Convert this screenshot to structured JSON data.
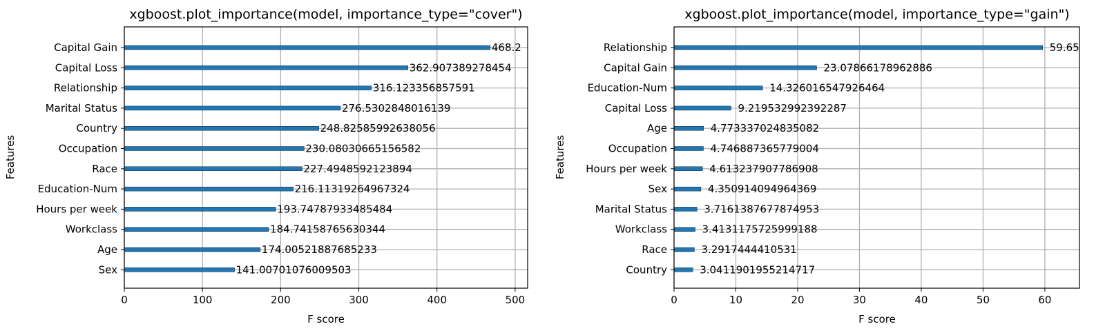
{
  "chart_data": [
    {
      "type": "bar",
      "orientation": "horizontal",
      "title": "xgboost.plot_importance(model, importance_type=\"cover\")",
      "xlabel": "F score",
      "ylabel": "Features",
      "xlim": [
        0,
        516
      ],
      "xticks": [
        0,
        100,
        200,
        300,
        400,
        500
      ],
      "grid": true,
      "categories": [
        "Capital Gain",
        "Capital Loss",
        "Relationship",
        "Marital Status",
        "Country",
        "Occupation",
        "Race",
        "Education-Num",
        "Hours per week",
        "Workclass",
        "Age",
        "Sex"
      ],
      "values": [
        468.2,
        362.907389278454,
        316.123356857591,
        276.5302848016139,
        248.82585992638056,
        230.08030665156582,
        227.4948592123894,
        216.11319264967324,
        193.74787933485484,
        184.74158765630344,
        174.00521887685233,
        141.00701076009503
      ],
      "value_labels": [
        "468.2",
        "362.907389278454",
        "316.123356857591",
        "276.5302848016139",
        "248.82585992638056",
        "230.08030665156582",
        "227.4948592123894",
        "216.11319264967324",
        "193.74787933485484",
        "184.74158765630344",
        "174.00521887685233",
        "141.00701076009503"
      ],
      "bar_color": "#1f77b4"
    },
    {
      "type": "bar",
      "orientation": "horizontal",
      "title": "xgboost.plot_importance(model, importance_type=\"gain\")",
      "xlabel": "F score",
      "ylabel": "Features",
      "xlim": [
        0,
        65.6
      ],
      "xticks": [
        0,
        10,
        20,
        30,
        40,
        50,
        60
      ],
      "grid": true,
      "categories": [
        "Relationship",
        "Capital Gain",
        "Education-Num",
        "Capital Loss",
        "Age",
        "Occupation",
        "Hours per week",
        "Sex",
        "Marital Status",
        "Workclass",
        "Race",
        "Country"
      ],
      "values": [
        59.65,
        23.07866178962886,
        14.326016547926464,
        9.219532992392287,
        4.773337024835082,
        4.746887365779004,
        4.613237907786908,
        4.350914094964369,
        3.7161387677874953,
        3.4131175725999188,
        3.2917444410531,
        3.0411901955214717
      ],
      "value_labels": [
        "59.65",
        "23.07866178962886",
        "14.326016547926464",
        "9.219532992392287",
        "4.773337024835082",
        "4.746887365779004",
        "4.613237907786908",
        "4.350914094964369",
        "3.7161387677874953",
        "3.4131175725999188",
        "3.2917444410531",
        "3.0411901955214717"
      ],
      "bar_color": "#1f77b4"
    }
  ]
}
